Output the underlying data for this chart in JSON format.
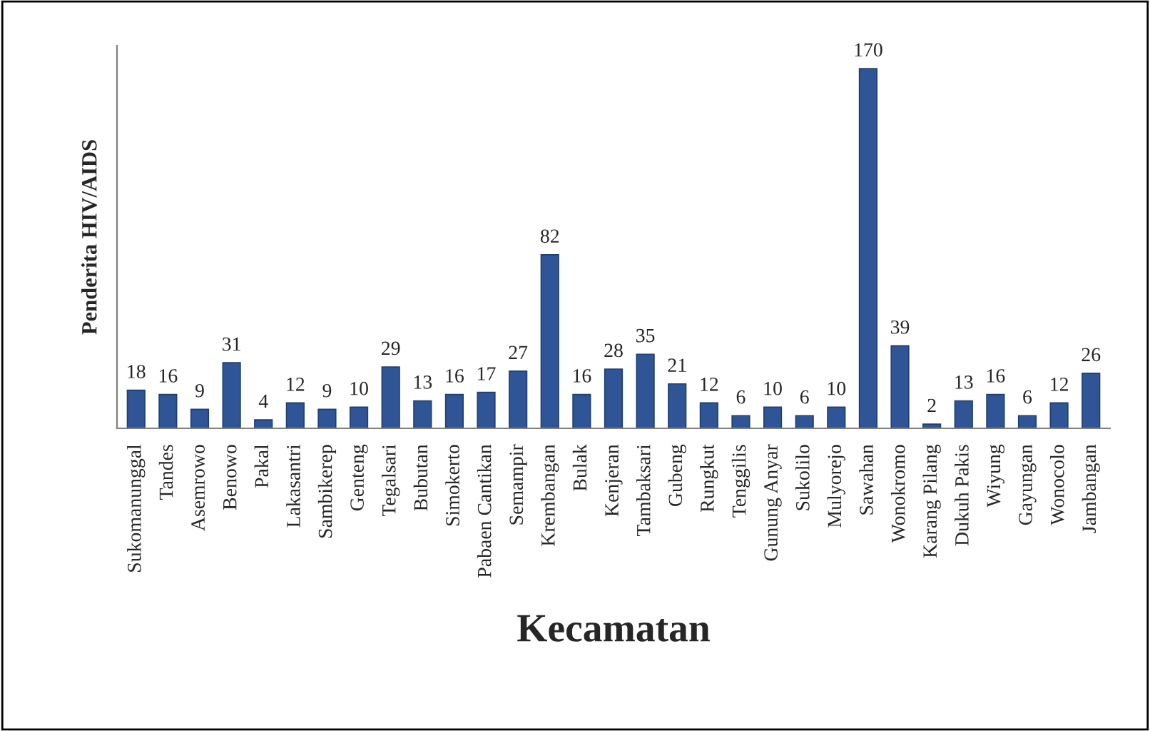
{
  "chart_data": {
    "type": "bar",
    "xlabel": "Kecamatan",
    "ylabel": "Penderita HIV/AIDS",
    "categories": [
      "Sukomanunggal",
      "Tandes",
      "Asemrowo",
      "Benowo",
      "Pakal",
      "Lakasantri",
      "Sambikerep",
      "Genteng",
      "Tegalsari",
      "Bubutan",
      "Simokerto",
      "Pabaen Cantikan",
      "Semampir",
      "Krembangan",
      "Bulak",
      "Kenjeran",
      "Tambaksari",
      "Gubeng",
      "Rungkut",
      "Tenggilis",
      "Gunung Anyar",
      "Sukolilo",
      "Mulyorejo",
      "Sawahan",
      "Wonokromo",
      "Karang Pilang",
      "Dukuh Pakis",
      "Wiyung",
      "Gayungan",
      "Wonocolo",
      "Jambangan"
    ],
    "values": [
      18,
      16,
      9,
      31,
      4,
      12,
      9,
      10,
      29,
      13,
      16,
      17,
      27,
      82,
      16,
      28,
      35,
      21,
      12,
      6,
      10,
      6,
      10,
      170,
      39,
      2,
      13,
      16,
      6,
      12,
      26
    ],
    "color": "#2f5597",
    "data_labels": true,
    "grid": false,
    "legend": false
  }
}
